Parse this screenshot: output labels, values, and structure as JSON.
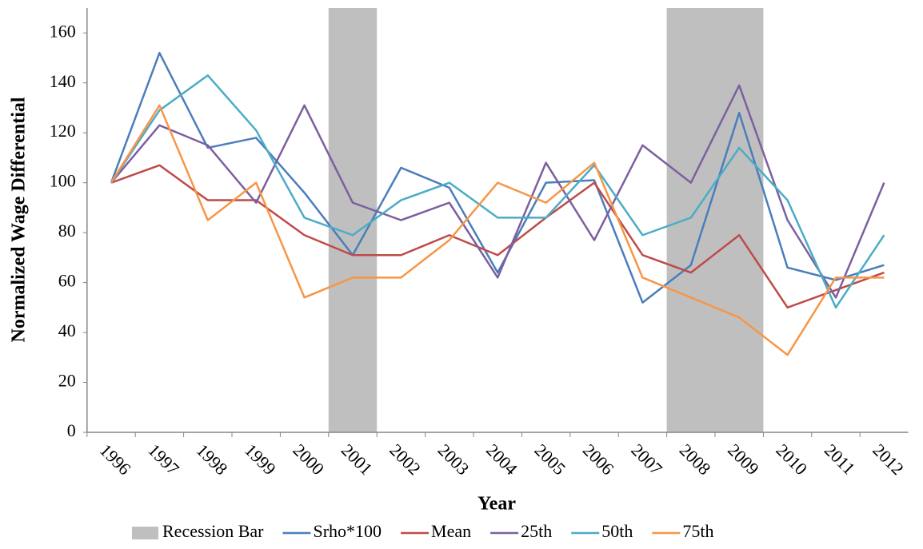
{
  "chart_data": {
    "type": "line",
    "x_label": "Year",
    "y_label": "Normalized Wage Differential",
    "categories": [
      "1996",
      "1997",
      "1998",
      "1999",
      "2000",
      "2001",
      "2002",
      "2003",
      "2004",
      "2005",
      "2006",
      "2007",
      "2008",
      "2009",
      "2010",
      "2011",
      "2012"
    ],
    "ylim": [
      0,
      170
    ],
    "yticks": [
      0,
      20,
      40,
      60,
      80,
      100,
      120,
      140,
      160
    ],
    "grid": false,
    "legend": "bottom",
    "series": [
      {
        "name": "Recession Bar",
        "type": "bar",
        "color": "#bfbfbf",
        "values": [
          null,
          null,
          null,
          null,
          null,
          170,
          null,
          null,
          null,
          null,
          null,
          null,
          170,
          170,
          null,
          null,
          null
        ]
      },
      {
        "name": "Srho*100",
        "type": "line",
        "color": "#4a7ebb",
        "values": [
          100,
          152,
          114,
          118,
          96,
          71,
          106,
          98,
          64,
          100,
          101,
          52,
          67,
          128,
          66,
          61,
          67
        ]
      },
      {
        "name": "Mean",
        "type": "line",
        "color": "#be4b48",
        "values": [
          100,
          107,
          93,
          93,
          79,
          71,
          71,
          79,
          71,
          86,
          100,
          71,
          64,
          79,
          50,
          57,
          64
        ]
      },
      {
        "name": "25th",
        "type": "line",
        "color": "#7d5fa0",
        "values": [
          100,
          123,
          115,
          92,
          131,
          92,
          85,
          92,
          62,
          108,
          77,
          115,
          100,
          139,
          85,
          54,
          100
        ]
      },
      {
        "name": "50th",
        "type": "line",
        "color": "#4bacc6",
        "values": [
          100,
          129,
          143,
          121,
          86,
          79,
          93,
          100,
          86,
          86,
          107,
          79,
          86,
          114,
          93,
          50,
          79
        ]
      },
      {
        "name": "75th",
        "type": "line",
        "color": "#f79646",
        "values": [
          100,
          131,
          85,
          100,
          54,
          62,
          62,
          77,
          100,
          92,
          108,
          62,
          54,
          46,
          31,
          62,
          62
        ]
      }
    ]
  }
}
